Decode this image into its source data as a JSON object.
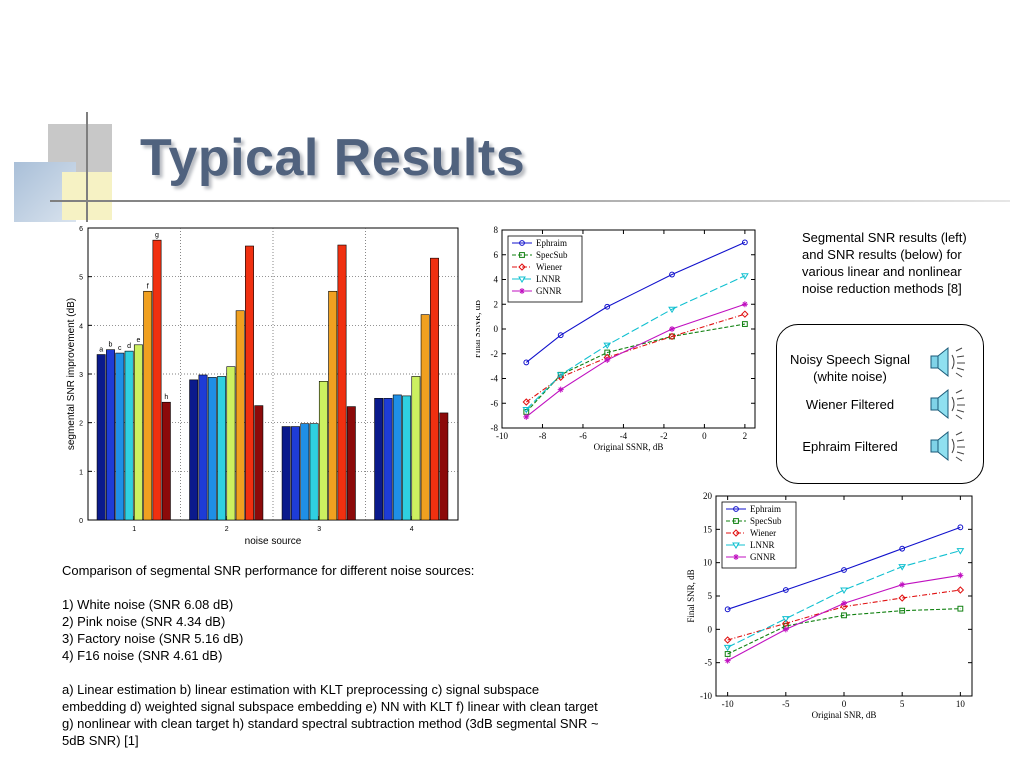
{
  "slide": {
    "title": "Typical Results",
    "description": "Segmental SNR results (left) and SNR results (below) for various linear and nonlinear noise reduction methods [8]",
    "audio": [
      {
        "label": "Noisy Speech Signal (white noise)",
        "icon": "speaker-icon"
      },
      {
        "label": "Wiener Filtered",
        "icon": "speaker-icon"
      },
      {
        "label": "Ephraim Filtered",
        "icon": "speaker-icon"
      }
    ],
    "caption": {
      "intro": "Comparison of segmental SNR performance for different noise sources:",
      "items": [
        "1) White noise (SNR 6.08 dB)",
        "2) Pink noise (SNR 4.34 dB)",
        "3) Factory noise (SNR 5.16 dB)",
        "4) F16 noise (SNR 4.61 dB)"
      ],
      "methods": "a) Linear estimation b) linear estimation with KLT preprocessing c) signal subspace embedding d) weighted signal subspace embedding e) NN with KLT f) linear with clean target g) nonlinear with clean target h) standard spectral subtraction method (3dB segmental SNR ~ 5dB SNR) [1]"
    }
  },
  "chart_data": [
    {
      "type": "bar",
      "xlabel": "noise source",
      "ylabel": "segmental SNR improvement (dB)",
      "categories": [
        "1",
        "2",
        "3",
        "4"
      ],
      "ylim": [
        0,
        6
      ],
      "yticks": [
        0,
        1,
        2,
        3,
        4,
        5,
        6
      ],
      "grid": true,
      "bar_labels": [
        "a",
        "b",
        "c",
        "d",
        "e",
        "f",
        "g",
        "h"
      ],
      "colors": [
        "#0a1a8c",
        "#1e3cd6",
        "#1f8fe6",
        "#2fd0e0",
        "#ccf060",
        "#f0a020",
        "#f03010",
        "#8c0a0a"
      ],
      "series": [
        {
          "name": "a",
          "values": [
            3.4,
            2.88,
            1.92,
            2.5
          ]
        },
        {
          "name": "b",
          "values": [
            3.5,
            2.98,
            1.92,
            2.5
          ]
        },
        {
          "name": "c",
          "values": [
            3.43,
            2.93,
            1.98,
            2.57
          ]
        },
        {
          "name": "d",
          "values": [
            3.47,
            2.95,
            1.98,
            2.55
          ]
        },
        {
          "name": "e",
          "values": [
            3.6,
            3.15,
            2.85,
            2.95
          ]
        },
        {
          "name": "f",
          "values": [
            4.7,
            4.3,
            4.7,
            4.22
          ]
        },
        {
          "name": "g",
          "values": [
            5.75,
            5.63,
            5.65,
            5.38
          ]
        },
        {
          "name": "h",
          "values": [
            2.42,
            2.35,
            2.33,
            2.2
          ]
        }
      ]
    },
    {
      "type": "line",
      "xlabel": "Original SSNR, dB",
      "ylabel": "Final SSNR, dB",
      "xlim": [
        -10,
        2.5
      ],
      "ylim": [
        -8,
        8
      ],
      "xticks": [
        -10,
        -8,
        -6,
        -4,
        -2,
        0,
        2
      ],
      "yticks": [
        -8,
        -6,
        -4,
        -2,
        0,
        2,
        4,
        6,
        8
      ],
      "legend_position": "top-left",
      "x": [
        -8.8,
        -7.1,
        -4.8,
        -1.6,
        2.0
      ],
      "series": [
        {
          "name": "Ephraim",
          "color": "#1010cc",
          "dash": "solid",
          "marker": "circle",
          "values": [
            -2.7,
            -0.5,
            1.8,
            4.4,
            7.0
          ]
        },
        {
          "name": "SpecSub",
          "color": "#108010",
          "dash": "dashed",
          "marker": "square",
          "values": [
            -6.7,
            -3.7,
            -1.9,
            -0.6,
            0.4
          ]
        },
        {
          "name": "Wiener",
          "color": "#e01010",
          "dash": "dashdot",
          "marker": "diamond",
          "values": [
            -5.9,
            -3.9,
            -2.3,
            -0.6,
            1.2
          ]
        },
        {
          "name": "LNNR",
          "color": "#10c0d0",
          "dash": "longdash",
          "marker": "triangle",
          "values": [
            -6.5,
            -3.7,
            -1.3,
            1.6,
            4.3
          ]
        },
        {
          "name": "GNNR",
          "color": "#c010c0",
          "dash": "solid",
          "marker": "star",
          "values": [
            -7.1,
            -4.9,
            -2.5,
            0.0,
            2.0
          ]
        }
      ]
    },
    {
      "type": "line",
      "xlabel": "Original SNR, dB",
      "ylabel": "Final SNR, dB",
      "xlim": [
        -11,
        11
      ],
      "ylim": [
        -10,
        20
      ],
      "xticks": [
        -10,
        -5,
        0,
        5,
        10
      ],
      "yticks": [
        -10,
        -5,
        0,
        5,
        10,
        15,
        20
      ],
      "legend_position": "top-left",
      "x": [
        -10,
        -5,
        0,
        5,
        10
      ],
      "series": [
        {
          "name": "Ephraim",
          "color": "#1010cc",
          "dash": "solid",
          "marker": "circle",
          "values": [
            3.0,
            5.9,
            8.9,
            12.1,
            15.3
          ]
        },
        {
          "name": "SpecSub",
          "color": "#108010",
          "dash": "dashed",
          "marker": "square",
          "values": [
            -3.7,
            0.5,
            2.1,
            2.8,
            3.1
          ]
        },
        {
          "name": "Wiener",
          "color": "#e01010",
          "dash": "dashdot",
          "marker": "diamond",
          "values": [
            -1.6,
            0.9,
            3.4,
            4.7,
            5.9
          ]
        },
        {
          "name": "LNNR",
          "color": "#10c0d0",
          "dash": "longdash",
          "marker": "triangle",
          "values": [
            -2.7,
            1.6,
            5.9,
            9.4,
            11.8
          ]
        },
        {
          "name": "GNNR",
          "color": "#c010c0",
          "dash": "solid",
          "marker": "star",
          "values": [
            -4.7,
            0.0,
            3.9,
            6.7,
            8.1
          ]
        }
      ]
    }
  ]
}
